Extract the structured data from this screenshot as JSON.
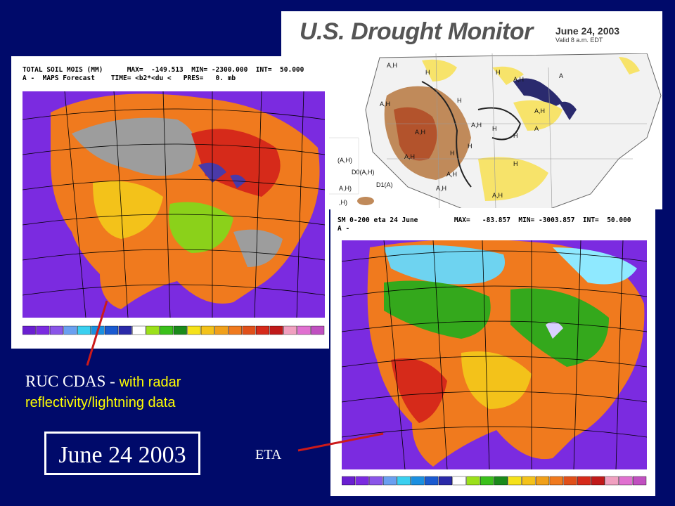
{
  "drought_monitor": {
    "title": "U.S. Drought Monitor",
    "date": "June 24, 2003",
    "valid": "Valid 8 a.m. EDT",
    "labels": [
      "A,H",
      "H",
      "A,H",
      "H",
      "A",
      "A,H",
      "H",
      "A,H",
      "H",
      "A,H",
      "A,H",
      "H",
      "A",
      "H",
      "A,H",
      "H",
      "A,H",
      "A,H",
      "A,H",
      "H",
      "(A,H)",
      "D0(A,H)",
      "A,H)",
      "D1(A)",
      ",H)"
    ]
  },
  "ruc_panel": {
    "header_line1": "TOTAL SOIL MOIS (MM)      MAX=  -149.513  MIN= -2300.000  INT=  50.000",
    "header_line2": "A -  MAPS Forecast    TIME= <b2*<du <   PRES=   0. mb"
  },
  "eta_panel": {
    "header_line1": "SM 0-200 eta 24 June         MAX=   -83.857  MIN= -3003.857  INT=  50.000",
    "header_line2": "A -"
  },
  "caption": {
    "ruc_name": "RUC CDAS",
    "ruc_sep": " - ",
    "ruc_desc": "with radar reflectivity/lightning data",
    "date": "June 24 2003",
    "eta_name": "ETA"
  },
  "colors": {
    "background": "#000a6a",
    "arrow": "#cc1a1a",
    "ocean": "#7b2be0",
    "caption_text": "#ffff00"
  }
}
